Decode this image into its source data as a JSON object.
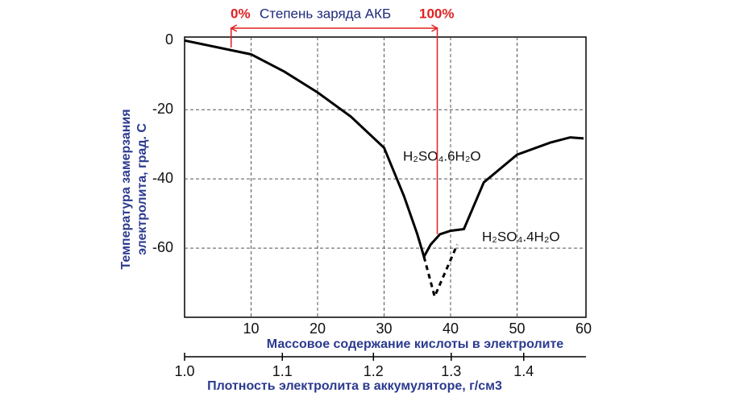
{
  "chart_data": {
    "type": "line",
    "xlabel": "Массовое содержание кислоты в электролите",
    "ylabel": [
      "Температура замерзания",
      "электролита,  град. С"
    ],
    "xlim": [
      0,
      60
    ],
    "ylim": [
      -80,
      1
    ],
    "xticks": [
      10,
      20,
      30,
      40,
      50,
      60
    ],
    "yticks": [
      0,
      -20,
      -40,
      -60
    ],
    "grid": true,
    "series": [
      {
        "name": "H₂SO₄.6H₂O",
        "color": "#000000",
        "style": "solid",
        "x": [
          0,
          5,
          10,
          15,
          20,
          25,
          30,
          33,
          35,
          36,
          37,
          38.4,
          40,
          42,
          45,
          50,
          55,
          58,
          60
        ],
        "values": [
          0,
          -2,
          -4,
          -9,
          -15,
          -22,
          -31,
          -45,
          -56,
          -62.5,
          -59,
          -56,
          -55,
          -54.5,
          -41,
          -33,
          -29.5,
          -28,
          -28.3
        ]
      },
      {
        "name": "H₂SO₄.4H₂O",
        "color": "#000000",
        "style": "dashed",
        "x": [
          36,
          37.6,
          41
        ],
        "values": [
          -62.5,
          -74,
          -59
        ]
      }
    ],
    "x2label": "Плотность электролита в аккумуляторе,  г/см3",
    "x2ticks": [
      {
        "value": 0,
        "label": "1.0"
      },
      {
        "value": 14.7,
        "label": "1.1"
      },
      {
        "value": 28.4,
        "label": "1.2"
      },
      {
        "value": 40.1,
        "label": "1.3"
      },
      {
        "value": 51,
        "label": "1.4"
      }
    ],
    "annotation": {
      "x_start": 7,
      "x_end": 38,
      "y_start": -2,
      "y_end": -56,
      "label_start": "0%",
      "text": "Степень заряда АКБ",
      "label_end": "100%",
      "color": "#e02020"
    }
  }
}
